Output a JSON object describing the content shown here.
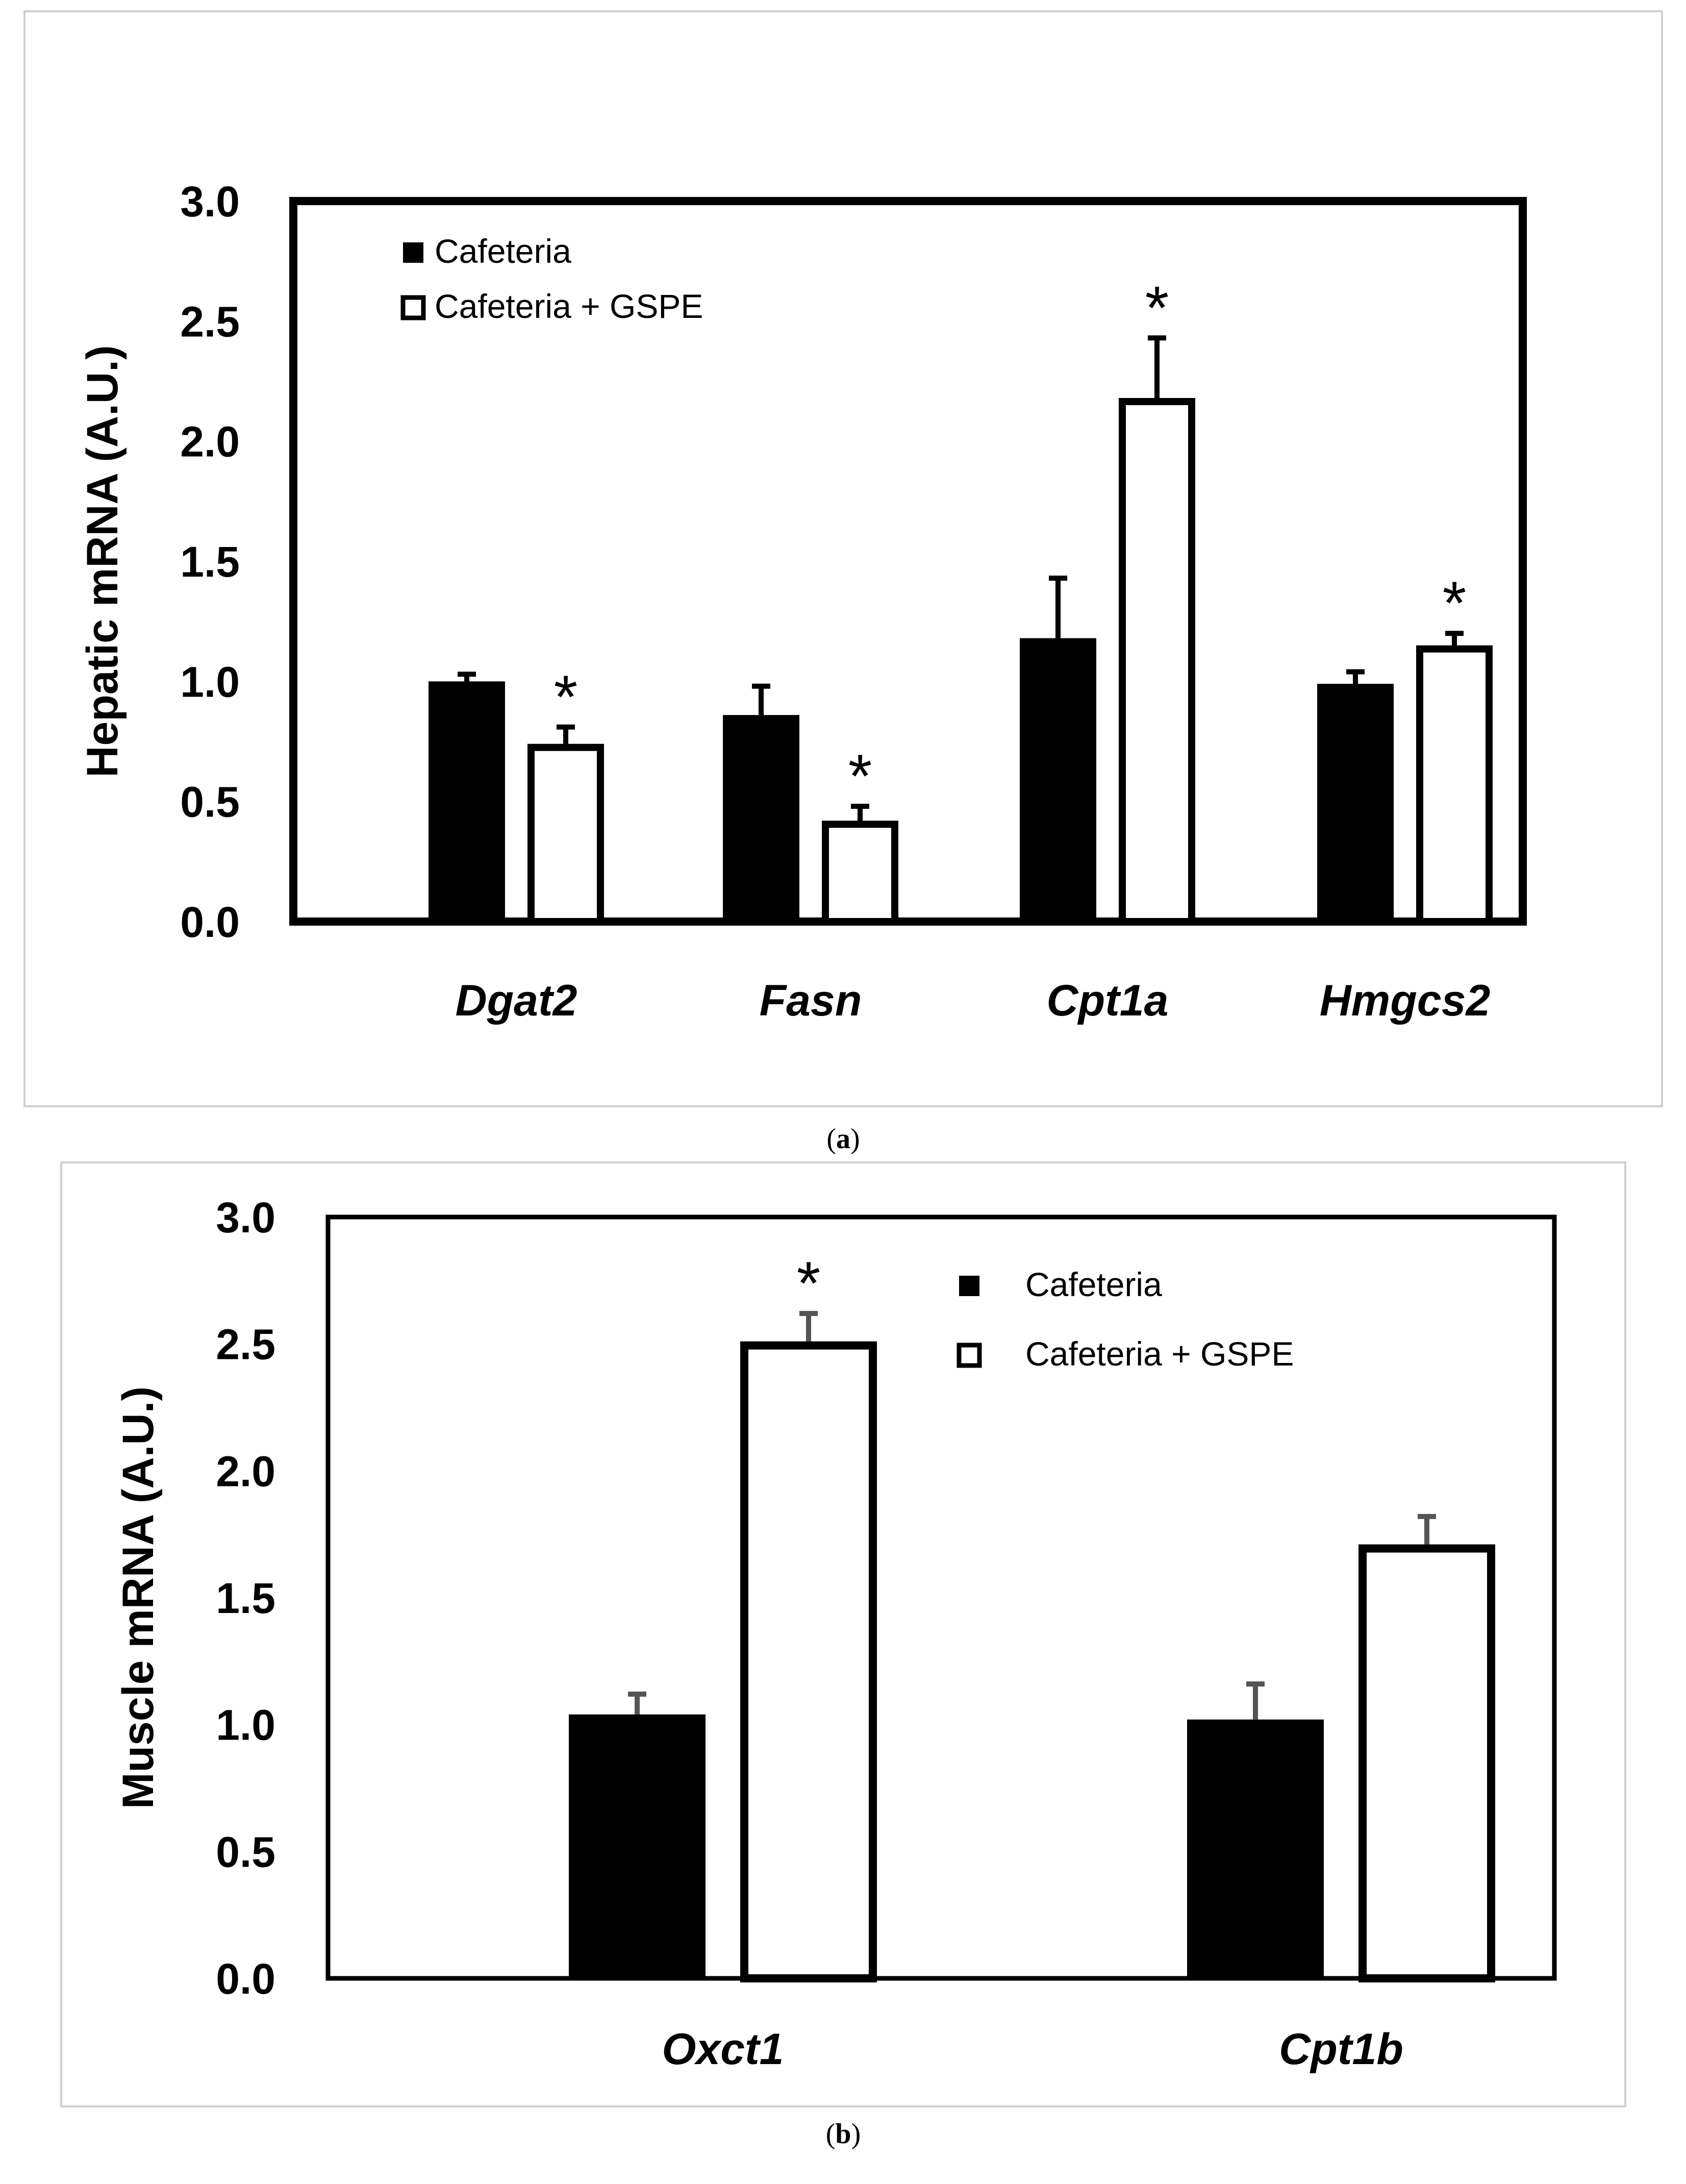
{
  "chart_data": [
    {
      "id": "a",
      "type": "bar",
      "caption_label": "a",
      "ylabel": "Hepatic mRNA (A.U.)",
      "ylim": [
        0,
        3.0
      ],
      "ytick_labels": [
        "0.0",
        "0.5",
        "1.0",
        "1.5",
        "2.0",
        "2.5",
        "3.0"
      ],
      "categories": [
        "Dgat2",
        "Fasn",
        "Cpt1a",
        "Hmgcs2"
      ],
      "legend": {
        "position": "top-left"
      },
      "series": [
        {
          "name": "Cafeteria",
          "fill": "#000000",
          "values": [
            1.0,
            0.86,
            1.18,
            0.99
          ],
          "errors": [
            0.03,
            0.12,
            0.25,
            0.05
          ],
          "significant": [
            false,
            false,
            false,
            false
          ]
        },
        {
          "name": "Cafeteria + GSPE",
          "fill": "#ffffff",
          "values": [
            0.74,
            0.42,
            2.18,
            1.15
          ],
          "errors": [
            0.07,
            0.06,
            0.25,
            0.05
          ],
          "significant": [
            true,
            true,
            true,
            true
          ]
        }
      ],
      "significance_mark": "*"
    },
    {
      "id": "b",
      "type": "bar",
      "caption_label": "b",
      "ylabel": "Muscle mRNA (A.U.)",
      "ylim": [
        0,
        3.0
      ],
      "ytick_labels": [
        "0.0",
        "0.5",
        "1.0",
        "1.5",
        "2.0",
        "2.5",
        "3.0"
      ],
      "categories": [
        "Oxct1",
        "Cpt1b"
      ],
      "legend": {
        "position": "top-right"
      },
      "series": [
        {
          "name": "Cafeteria",
          "fill": "#000000",
          "values": [
            1.04,
            1.02
          ],
          "errors": [
            0.08,
            0.14
          ],
          "significant": [
            false,
            false
          ]
        },
        {
          "name": "Cafeteria + GSPE",
          "fill": "#ffffff",
          "values": [
            2.51,
            1.71
          ],
          "errors": [
            0.11,
            0.11
          ],
          "significant": [
            true,
            false
          ]
        }
      ],
      "significance_mark": "*"
    }
  ]
}
